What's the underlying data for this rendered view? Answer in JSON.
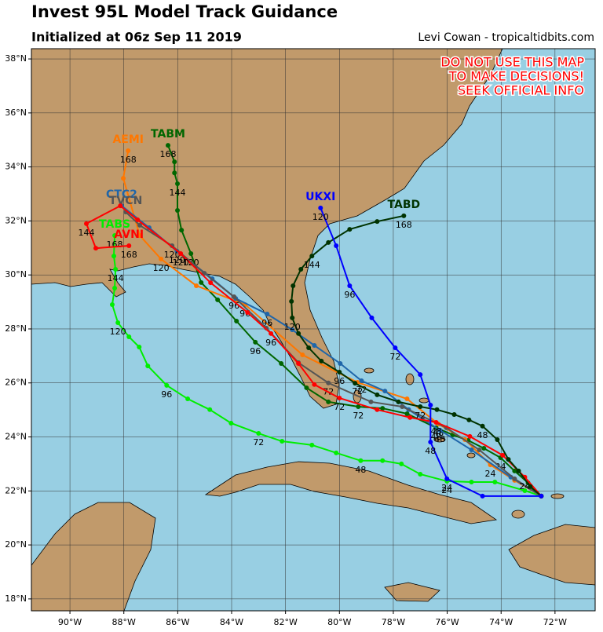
{
  "header": {
    "title": "Invest 95L Model Track Guidance",
    "subtitle": "Initialized at 06z Sep 11 2019",
    "credit": "Levi Cowan - tropicaltidbits.com"
  },
  "warning": [
    "DO NOT USE THIS MAP",
    "TO MAKE DECISIONS!",
    "SEEK OFFICIAL INFO"
  ],
  "map": {
    "xlim": [
      -91.43,
      -70.51
    ],
    "ylim": [
      17.56,
      38.38
    ],
    "xticks": [
      {
        "value": -90,
        "label": "90°W"
      },
      {
        "value": -88,
        "label": "88°W"
      },
      {
        "value": -86,
        "label": "86°W"
      },
      {
        "value": -84,
        "label": "84°W"
      },
      {
        "value": -82,
        "label": "82°W"
      },
      {
        "value": -80,
        "label": "80°W"
      },
      {
        "value": -78,
        "label": "78°W"
      },
      {
        "value": -76,
        "label": "76°W"
      },
      {
        "value": -74,
        "label": "74°W"
      },
      {
        "value": -72,
        "label": "72°W"
      }
    ],
    "yticks": [
      {
        "value": 18,
        "label": "18°N"
      },
      {
        "value": 20,
        "label": "20°N"
      },
      {
        "value": 22,
        "label": "22°N"
      },
      {
        "value": 24,
        "label": "24°N"
      },
      {
        "value": 26,
        "label": "26°N"
      },
      {
        "value": 28,
        "label": "28°N"
      },
      {
        "value": 30,
        "label": "30°N"
      },
      {
        "value": 32,
        "label": "32°N"
      },
      {
        "value": 34,
        "label": "34°N"
      },
      {
        "value": 36,
        "label": "36°N"
      },
      {
        "value": 38,
        "label": "38°N"
      }
    ],
    "tracks": [
      {
        "name": "TABS",
        "color": "#00ee00",
        "lon": [
          -72.51,
          -73.12,
          -74.23,
          -75.1,
          -76.01,
          -77.0,
          -77.7,
          -78.4,
          -79.21,
          -80.12,
          -81.02,
          -82.13,
          -83.0,
          -84.02,
          -84.81,
          -85.63,
          -86.41,
          -87.11,
          -87.43,
          -87.81,
          -88.22,
          -88.43,
          -88.34,
          -88.31,
          -88.37,
          -88.34
        ],
        "lat": [
          21.81,
          22.01,
          22.33,
          22.33,
          22.36,
          22.62,
          23.0,
          23.12,
          23.12,
          23.41,
          23.7,
          23.84,
          24.13,
          24.51,
          25.01,
          25.41,
          25.91,
          26.63,
          27.33,
          27.71,
          28.23,
          28.9,
          29.51,
          30.21,
          30.7,
          31.46
        ],
        "hour_labels": [
          null,
          null,
          null,
          null,
          "24",
          null,
          null,
          null,
          "48",
          null,
          null,
          null,
          "72",
          null,
          null,
          null,
          "96",
          null,
          null,
          null,
          "120",
          null,
          null,
          "144",
          null,
          "168"
        ]
      },
      {
        "name": "TABM",
        "color": "#006600",
        "lon": [
          -72.51,
          -73.0,
          -73.5,
          -74.02,
          -74.64,
          -75.22,
          -75.8,
          -76.41,
          -77.49,
          -78.4,
          -79.3,
          -80.41,
          -81.22,
          -82.16,
          -83.12,
          -83.82,
          -84.52,
          -85.13,
          -85.51,
          -85.86,
          -86.01,
          -86.01,
          -86.12,
          -86.12,
          -86.36
        ],
        "lat": [
          21.81,
          22.3,
          22.74,
          23.23,
          23.58,
          23.87,
          24.08,
          24.34,
          24.86,
          25.06,
          25.12,
          25.3,
          25.82,
          26.72,
          27.51,
          28.29,
          29.08,
          29.72,
          30.79,
          31.66,
          32.39,
          33.38,
          33.78,
          34.19,
          34.8
        ],
        "hour_labels": [
          null,
          null,
          null,
          "24",
          null,
          null,
          null,
          "48",
          null,
          null,
          "72",
          null,
          null,
          null,
          "96",
          null,
          null,
          null,
          "120",
          null,
          null,
          "144",
          null,
          null,
          "168"
        ]
      },
      {
        "name": "AEMI",
        "color": "#ff7700",
        "lon": [
          -72.51,
          -73.5,
          -74.4,
          -75.34,
          -76.33,
          -77.49,
          -79.33,
          -81.37,
          -83.5,
          -85.31,
          -86.62,
          -87.41,
          -88.02,
          -87.84
        ],
        "lat": [
          21.81,
          22.39,
          22.97,
          23.9,
          24.48,
          25.41,
          26.02,
          27.04,
          28.9,
          29.6,
          30.59,
          31.46,
          33.58,
          34.6
        ],
        "hour_labels": [
          null,
          null,
          "24",
          null,
          "48",
          null,
          "72",
          null,
          "96",
          null,
          "120",
          null,
          null,
          "168"
        ]
      },
      {
        "name": "CTC2",
        "color": "#1f66aa",
        "lon": [
          -72.51,
          -73.64,
          -75.1,
          -76.27,
          -77.43,
          -78.31,
          -79.18,
          -79.97,
          -80.93,
          -81.75,
          -82.68,
          -83.85,
          -84.72,
          -86.03,
          -87.06,
          -88.08
        ],
        "lat": [
          21.81,
          22.51,
          23.52,
          24.25,
          25.01,
          25.7,
          26.08,
          26.72,
          27.39,
          27.97,
          28.55,
          29.13,
          29.86,
          30.88,
          31.75,
          32.56
        ],
        "hour_labels": [
          null,
          null,
          null,
          "48",
          null,
          null,
          "72",
          null,
          null,
          null,
          "96",
          null,
          null,
          "120",
          null,
          null
        ]
      },
      {
        "name": "TVCN",
        "color": "#555555",
        "lon": [
          -72.51,
          -73.5,
          -74.81,
          -76.03,
          -77.67,
          -78.83,
          -80.41,
          -81.52,
          -82.71,
          -83.91,
          -85.01,
          -86.21,
          -87.41,
          -87.93
        ],
        "lat": [
          21.81,
          22.45,
          23.52,
          24.34,
          25.12,
          25.3,
          26.0,
          26.75,
          28.03,
          29.19,
          30.06,
          31.08,
          31.84,
          32.33
        ],
        "hour_labels": [
          null,
          null,
          null,
          null,
          null,
          null,
          "72",
          null,
          null,
          "96",
          null,
          "120",
          null,
          null
        ]
      },
      {
        "name": "AVNI",
        "color": "#ff0000",
        "lon": [
          -72.51,
          -73.12,
          -73.94,
          -75.16,
          -76.41,
          -77.38,
          -78.6,
          -80.0,
          -80.93,
          -81.52,
          -82.54,
          -83.41,
          -84.78,
          -85.89,
          -87.49,
          -88.13,
          -89.39,
          -89.04,
          -87.81
        ],
        "lat": [
          21.81,
          22.51,
          23.32,
          24.02,
          24.54,
          24.72,
          25.01,
          25.44,
          25.94,
          26.72,
          27.83,
          28.61,
          29.71,
          30.79,
          32.04,
          32.56,
          31.9,
          30.99,
          31.08
        ],
        "hour_labels": [
          null,
          "24",
          null,
          null,
          "48",
          null,
          null,
          "72",
          null,
          null,
          "96",
          null,
          null,
          "120",
          null,
          null,
          "144",
          null,
          "168"
        ]
      },
      {
        "name": "TABD",
        "color": "#003300",
        "lon": [
          -72.51,
          -72.92,
          -73.35,
          -73.73,
          -74.14,
          -74.69,
          -75.19,
          -75.74,
          -76.38,
          -77.0,
          -77.81,
          -78.6,
          -79.42,
          -80.0,
          -80.67,
          -81.14,
          -81.52,
          -81.75,
          -81.78,
          -81.72,
          -81.43,
          -81.02,
          -80.41,
          -79.62,
          -78.6,
          -77.61
        ],
        "lat": [
          21.81,
          22.16,
          22.74,
          23.17,
          23.9,
          24.4,
          24.63,
          24.83,
          25.01,
          25.12,
          25.3,
          25.56,
          25.99,
          26.4,
          26.81,
          27.3,
          27.83,
          28.41,
          29.02,
          29.6,
          30.21,
          30.7,
          31.2,
          31.69,
          31.98,
          32.19
        ],
        "hour_labels": [
          null,
          null,
          null,
          null,
          null,
          "48",
          null,
          null,
          null,
          "72",
          null,
          null,
          null,
          "96",
          null,
          null,
          null,
          "120",
          null,
          null,
          null,
          "144",
          null,
          null,
          null,
          "168"
        ]
      },
      {
        "name": "UKXI",
        "color": "#0000ff",
        "lon": [
          -72.51,
          -74.69,
          -76.01,
          -76.62,
          -76.62,
          -77.0,
          -77.93,
          -78.8,
          -79.62,
          -80.12,
          -80.7
        ],
        "lat": [
          21.81,
          21.81,
          22.45,
          23.81,
          25.18,
          26.31,
          27.3,
          28.41,
          29.6,
          31.08,
          32.48
        ],
        "hour_labels": [
          null,
          null,
          "24",
          "48",
          null,
          null,
          "72",
          null,
          "96",
          null,
          "120"
        ]
      }
    ]
  }
}
